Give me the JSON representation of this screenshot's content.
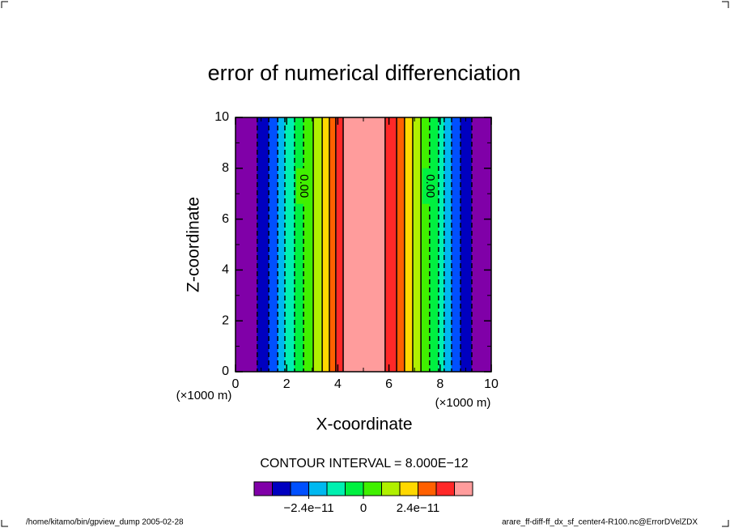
{
  "chart_data": {
    "type": "contour-bands",
    "title": "error of numerical differenciation",
    "xlabel": "X-coordinate",
    "ylabel": "Z-coordinate",
    "unit_label": "(×1000 m)",
    "contour_interval_label": "CONTOUR INTERVAL = 8.000E−12",
    "contour_label": "0.00",
    "x_edges": [
      0,
      0.85,
      1.3,
      1.65,
      1.93,
      2.31,
      2.66,
      3.04,
      3.39,
      3.67,
      3.92,
      4.21,
      5.85,
      6.3,
      6.61,
      6.93,
      7.25,
      7.59,
      7.94,
      8.16,
      8.45,
      8.8,
      9.24,
      10
    ],
    "values": [
      -4.4e-11,
      -3.6e-11,
      -2.8e-11,
      -2e-11,
      -1.2e-11,
      -4e-12,
      4e-12,
      1.2e-11,
      2e-11,
      2.8e-11,
      3.6e-11,
      4.4e-11,
      3.6e-11,
      2.8e-11,
      2e-11,
      1.2e-11,
      4e-12,
      -4e-12,
      -1.2e-11,
      -2e-11,
      -2.8e-11,
      -3.6e-11,
      -4.4e-11
    ],
    "xlim": [
      0,
      10
    ],
    "ylim": [
      0,
      10
    ],
    "xticks": [
      0,
      2,
      4,
      6,
      8,
      10
    ],
    "yticks": [
      0,
      2,
      4,
      6,
      8,
      10
    ],
    "xminorticks": [
      1,
      3,
      5,
      7,
      9
    ],
    "yminorticks": [
      1,
      3,
      5,
      7,
      9
    ],
    "levels": [
      -4.8e-11,
      -4e-11,
      -3.2e-11,
      -2.4e-11,
      -1.6e-11,
      -8e-12,
      0,
      8e-12,
      1.6e-11,
      2.4e-11,
      3.2e-11,
      4e-11,
      4.8e-11
    ],
    "colors": [
      "#8000a8",
      "#0000c0",
      "#0050ff",
      "#00b8f0",
      "#00f0b0",
      "#00f040",
      "#40f000",
      "#b0f000",
      "#ffd800",
      "#ff6000",
      "#ff2828",
      "#ff9c9c"
    ],
    "colorbar_ticks": [
      {
        "value": -2.4e-11,
        "label": "−2.4e−11"
      },
      0,
      {
        "value": 2.4e-11,
        "label": "2.4e−11"
      }
    ],
    "footer_left": "/home/kitamo/bin/gpview_dump  2005-02-28",
    "footer_right": "arare_ff-diff-ff_dx_sf_center4-R100.nc@ErrorDVelZDX"
  }
}
